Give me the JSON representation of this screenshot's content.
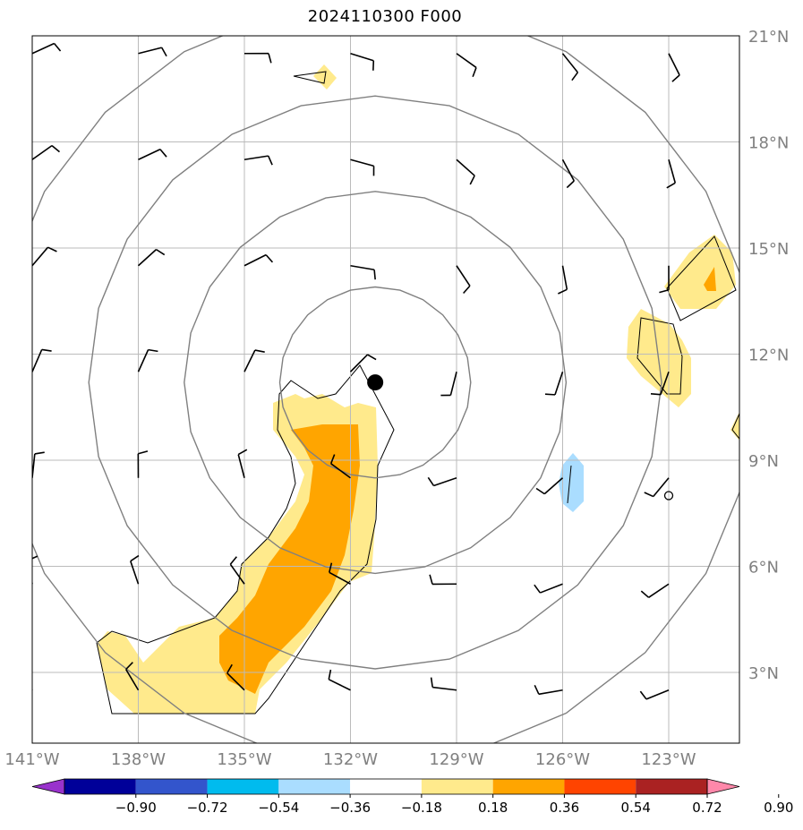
{
  "title": "2024110300 F000",
  "map": {
    "lon_range": [
      -141.0,
      -121.0
    ],
    "lat_range": [
      1.0,
      21.0
    ],
    "lon_ticks": [
      {
        "value": -141,
        "label": "141°W"
      },
      {
        "value": -138,
        "label": "138°W"
      },
      {
        "value": -135,
        "label": "135°W"
      },
      {
        "value": -132,
        "label": "132°W"
      },
      {
        "value": -129,
        "label": "129°W"
      },
      {
        "value": -126,
        "label": "126°W"
      },
      {
        "value": -123,
        "label": "123°W"
      }
    ],
    "lat_ticks": [
      {
        "value": 21,
        "label": "21°N"
      },
      {
        "value": 18,
        "label": "18°N"
      },
      {
        "value": 15,
        "label": "15°N"
      },
      {
        "value": 12,
        "label": "12°N"
      },
      {
        "value": 9,
        "label": "9°N"
      },
      {
        "value": 6,
        "label": "6°N"
      },
      {
        "value": 3,
        "label": "3°N"
      }
    ],
    "storm_center": {
      "lon": -131.3,
      "lat": 11.2
    },
    "range_rings_deg": [
      2.7,
      5.4,
      8.1,
      10.8
    ],
    "marker_circle": {
      "lon": -123.0,
      "lat": 8.0
    }
  },
  "colorbar": {
    "colors": [
      "#9933cc",
      "#000099",
      "#3355cc",
      "#00bbee",
      "#aaddff",
      "#ffffff",
      "#ffea8c",
      "#ffa500",
      "#ff4400",
      "#aa2222",
      "#ff88aa"
    ],
    "labels": [
      "−0.90",
      "−0.72",
      "−0.54",
      "−0.36",
      "−0.18",
      "0.18",
      "0.36",
      "0.54",
      "0.72",
      "0.90"
    ]
  },
  "colors": {
    "light_yellow": "#ffea8c",
    "orange": "#ffa500",
    "light_blue": "#aaddff",
    "grid": "#bbbbbb",
    "rings": "#808080"
  }
}
